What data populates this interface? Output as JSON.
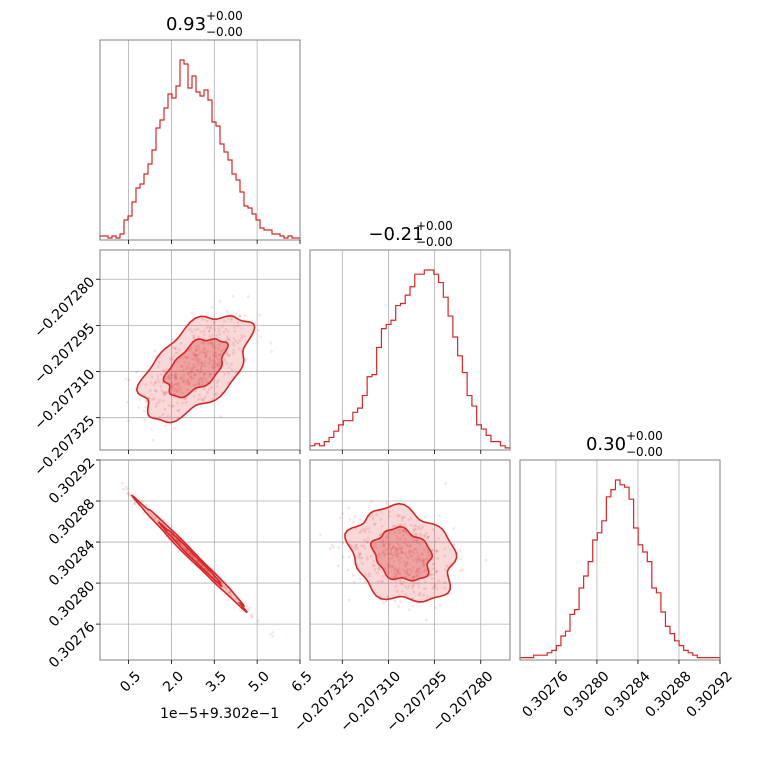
{
  "chart_data": {
    "type": "corner",
    "accent_color": "#d62728",
    "panel_border_color": "#808080",
    "grid": true,
    "parameters": [
      {
        "title_value": "0.93",
        "title_sup": "+0.00",
        "title_sub": "−0.00",
        "axis_offset_label": "1e−5+9.302e−1",
        "ticks": [
          0.5,
          2.0,
          3.5,
          5.0,
          6.5
        ],
        "tick_labels": [
          "0.5",
          "2.0",
          "3.5",
          "5.0",
          "6.5"
        ],
        "range": [
          -0.5,
          6.5
        ]
      },
      {
        "title_value": "−0.21",
        "title_sup": "+0.00",
        "title_sub": "−0.00",
        "axis_offset_label": "",
        "ticks": [
          -0.207325,
          -0.20731,
          -0.207295,
          -0.20728
        ],
        "tick_labels": [
          "−0.207325",
          "−0.207310",
          "−0.207295",
          "−0.207280"
        ],
        "range": [
          -0.2073355,
          -0.2072705
        ]
      },
      {
        "title_value": "0.30",
        "title_sup": "+0.00",
        "title_sub": "−0.00",
        "axis_offset_label": "",
        "ticks": [
          0.30276,
          0.3028,
          0.30284,
          0.30288,
          0.30292
        ],
        "tick_labels": [
          "0.30276",
          "0.30280",
          "0.30284",
          "0.30288",
          "0.30292"
        ],
        "range": [
          0.302725,
          0.30292
        ]
      }
    ],
    "histograms": [
      {
        "bins": 50,
        "counts": [
          2,
          2,
          1,
          2,
          1,
          3,
          10,
          12,
          19,
          26,
          28,
          33,
          38,
          45,
          56,
          60,
          66,
          73,
          71,
          77,
          90,
          88,
          76,
          82,
          74,
          72,
          75,
          70,
          59,
          57,
          48,
          44,
          40,
          33,
          30,
          24,
          17,
          16,
          13,
          10,
          6,
          5,
          5,
          3,
          3,
          2,
          1,
          2,
          1,
          1
        ]
      },
      {
        "bins": 42,
        "counts": [
          2,
          3,
          2,
          4,
          6,
          9,
          12,
          14,
          14,
          18,
          20,
          26,
          35,
          36,
          49,
          58,
          60,
          62,
          69,
          70,
          74,
          78,
          84,
          84,
          86,
          86,
          84,
          80,
          73,
          64,
          54,
          45,
          37,
          26,
          21,
          12,
          10,
          7,
          4,
          4,
          2,
          1
        ]
      },
      {
        "bins": 44,
        "counts": [
          1,
          1,
          1,
          2,
          2,
          2,
          3,
          4,
          6,
          10,
          12,
          19,
          21,
          30,
          35,
          41,
          50,
          53,
          58,
          68,
          71,
          75,
          73,
          72,
          67,
          55,
          48,
          45,
          41,
          30,
          28,
          20,
          14,
          11,
          8,
          6,
          4,
          3,
          2,
          1,
          1,
          1,
          1,
          1
        ]
      }
    ],
    "pairs": [
      {
        "x_param": 0,
        "y_param": 1,
        "mean": [
          2.85,
          -0.2073085
        ],
        "sd": [
          0.95,
          8.5e-06
        ],
        "corr": 0.55
      },
      {
        "x_param": 0,
        "y_param": 2,
        "mean": [
          2.7,
          0.3028275
        ],
        "sd": [
          0.95,
          2.65e-05
        ],
        "corr": -0.995
      },
      {
        "x_param": 1,
        "y_param": 2,
        "mean": [
          -0.2073055,
          0.3028275
        ],
        "sd": [
          8.5e-06,
          2.3e-05
        ],
        "corr": -0.2
      }
    ]
  }
}
